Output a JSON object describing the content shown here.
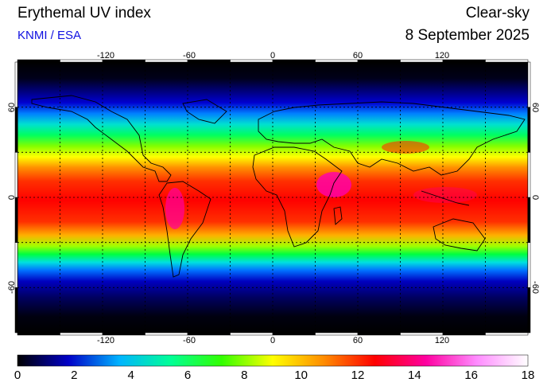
{
  "header": {
    "title": "Erythemal UV index",
    "credit": "KNMI / ESA",
    "sky": "Clear-sky",
    "date": "8 September 2025"
  },
  "map": {
    "lon_ticks_top": [
      "-120",
      "-60",
      "0",
      "60",
      "120"
    ],
    "lon_ticks_bottom": [
      "-120",
      "-60",
      "0",
      "60",
      "120"
    ],
    "lat_ticks_left": [
      "60",
      "0",
      "-60"
    ],
    "lat_ticks_right": [
      "60",
      "0",
      "-60"
    ],
    "lon_values": [
      -120,
      -60,
      0,
      60,
      120
    ],
    "lat_values": [
      60,
      0,
      -60
    ]
  },
  "colorbar": {
    "labels": [
      "0",
      "2",
      "4",
      "6",
      "8",
      "10",
      "12",
      "14",
      "16",
      "18"
    ],
    "min": 0,
    "max": 18,
    "stops": [
      "#000000",
      "#0000c8",
      "#00b4ff",
      "#00ff96",
      "#32ff00",
      "#ffff00",
      "#ff8c00",
      "#ff0000",
      "#ff00a0",
      "#ff8cff",
      "#ffffff"
    ]
  }
}
